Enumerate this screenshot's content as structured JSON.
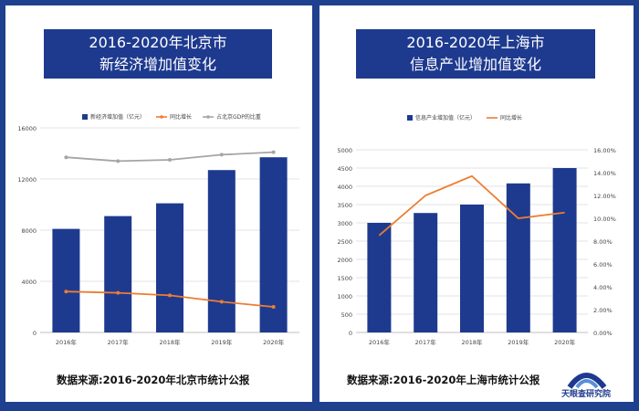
{
  "left_panel": {
    "title_line1": "2016-2020年北京市",
    "title_line2": "新经济增加值变化",
    "source": "数据来源:2016-2020年北京市统计公报"
  },
  "right_panel": {
    "title_line1": "2016-2020年上海市",
    "title_line2": "信息产业增加值变化",
    "source": "数据来源:2016-2020年上海市统计公报"
  },
  "logo_text": "天眼查研究院",
  "colors": {
    "bar": "#1e3a8f",
    "line_orange": "#ed7d31",
    "line_gray": "#a5a5a5",
    "background": "#1f3f8f"
  },
  "chart_data": [
    {
      "type": "bar",
      "categories": [
        "2016年",
        "2017年",
        "2018年",
        "2019年",
        "2020年"
      ],
      "series": [
        {
          "name": "新经济增加值（亿元）",
          "kind": "bar",
          "axis": "left",
          "values": [
            8100,
            9100,
            10100,
            12700,
            13700
          ]
        },
        {
          "name": "同比增长",
          "kind": "line",
          "axis": "left",
          "values": [
            3200,
            3100,
            2900,
            2400,
            2000
          ]
        },
        {
          "name": "占北京GDP的比重",
          "kind": "line",
          "axis": "left",
          "values": [
            13700,
            13400,
            13500,
            13900,
            14100
          ]
        }
      ],
      "ylim": [
        0,
        16000
      ],
      "yticks": [
        "0",
        "4000",
        "8000",
        "12000",
        "16000"
      ],
      "grid": true,
      "legend": "top"
    },
    {
      "type": "bar",
      "categories": [
        "2016年",
        "2017年",
        "2018年",
        "2019年",
        "2020年"
      ],
      "series": [
        {
          "name": "信息产业增加值（亿元）",
          "kind": "bar",
          "axis": "left",
          "values": [
            3000,
            3270,
            3500,
            4080,
            4500
          ]
        },
        {
          "name": "同比增长",
          "kind": "line",
          "axis": "right",
          "values": [
            8.5,
            12.0,
            13.7,
            10.0,
            10.5
          ]
        }
      ],
      "ylim": [
        0,
        5000
      ],
      "y2lim": [
        0,
        16
      ],
      "yticks": [
        "0",
        "500",
        "1000",
        "1500",
        "2000",
        "2500",
        "3000",
        "3500",
        "4000",
        "4500",
        "5000"
      ],
      "y2ticks": [
        "0.00%",
        "2.00%",
        "4.00%",
        "6.00%",
        "8.00%",
        "10.00%",
        "12.00%",
        "14.00%",
        "16.00%"
      ],
      "grid": true,
      "legend": "top"
    }
  ]
}
